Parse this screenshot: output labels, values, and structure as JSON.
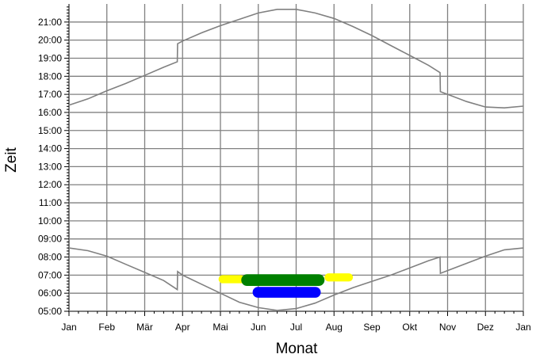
{
  "chart_data": {
    "type": "line",
    "xlabel": "Monat",
    "ylabel": "Zeit",
    "x_ticks": [
      "Jan",
      "Feb",
      "Mär",
      "Apr",
      "Mai",
      "Jun",
      "Jul",
      "Aug",
      "Sep",
      "Okt",
      "Nov",
      "Dez",
      "Jan"
    ],
    "y_ticks": [
      "05:00",
      "06:00",
      "07:00",
      "08:00",
      "09:00",
      "10:00",
      "11:00",
      "12:00",
      "13:00",
      "14:00",
      "15:00",
      "16:00",
      "17:00",
      "18:00",
      "19:00",
      "20:00",
      "21:00"
    ],
    "xlim": [
      0,
      12
    ],
    "ylim": [
      5,
      22
    ],
    "grid": true,
    "colors": {
      "line": "#808080",
      "grid": "#808080",
      "yellow": "#ffff00",
      "green": "#008000",
      "blue": "#0000ff"
    },
    "series": [
      {
        "line": "sunset",
        "points": [
          [
            0,
            16.4
          ],
          [
            0.5,
            16.75
          ],
          [
            1,
            17.2
          ],
          [
            1.5,
            17.6
          ],
          [
            2,
            18.05
          ],
          [
            2.5,
            18.5
          ],
          [
            2.86,
            18.8
          ],
          [
            2.87,
            19.8
          ],
          [
            3,
            19.95
          ],
          [
            3.5,
            20.4
          ],
          [
            4,
            20.8
          ],
          [
            4.5,
            21.15
          ],
          [
            5,
            21.5
          ],
          [
            5.5,
            21.7
          ],
          [
            6,
            21.7
          ],
          [
            6.5,
            21.5
          ],
          [
            7,
            21.2
          ],
          [
            7.5,
            20.75
          ],
          [
            8,
            20.25
          ],
          [
            8.5,
            19.7
          ],
          [
            9,
            19.15
          ],
          [
            9.5,
            18.6
          ],
          [
            9.8,
            18.2
          ],
          [
            9.81,
            17.15
          ],
          [
            10,
            17.0
          ],
          [
            10.5,
            16.6
          ],
          [
            11,
            16.3
          ],
          [
            11.5,
            16.25
          ],
          [
            12,
            16.35
          ]
        ]
      },
      {
        "line": "sunrise",
        "points": [
          [
            0,
            8.5
          ],
          [
            0.5,
            8.35
          ],
          [
            1,
            8.05
          ],
          [
            1.5,
            7.6
          ],
          [
            2,
            7.15
          ],
          [
            2.5,
            6.7
          ],
          [
            2.86,
            6.2
          ],
          [
            2.87,
            7.2
          ],
          [
            3,
            7.0
          ],
          [
            3.5,
            6.5
          ],
          [
            4,
            6.0
          ],
          [
            4.5,
            5.5
          ],
          [
            5,
            5.2
          ],
          [
            5.5,
            5.05
          ],
          [
            6,
            5.15
          ],
          [
            6.5,
            5.45
          ],
          [
            7,
            5.9
          ],
          [
            7.5,
            6.3
          ],
          [
            8,
            6.65
          ],
          [
            8.5,
            7.0
          ],
          [
            9,
            7.4
          ],
          [
            9.5,
            7.8
          ],
          [
            9.8,
            8.0
          ],
          [
            9.81,
            7.1
          ],
          [
            10,
            7.25
          ],
          [
            10.5,
            7.65
          ],
          [
            11,
            8.05
          ],
          [
            11.5,
            8.4
          ],
          [
            12,
            8.5
          ]
        ]
      }
    ],
    "regions": [
      {
        "color": "yellow",
        "x": [
          3.95,
          4.65
        ],
        "y": [
          6.55,
          7.0
        ]
      },
      {
        "color": "yellow",
        "x": [
          6.75,
          7.5
        ],
        "y": [
          6.65,
          7.1
        ]
      },
      {
        "color": "green",
        "x": [
          4.55,
          6.75
        ],
        "y": [
          6.4,
          7.05
        ]
      },
      {
        "color": "blue",
        "x": [
          4.85,
          6.65
        ],
        "y": [
          5.75,
          6.35
        ]
      }
    ]
  }
}
